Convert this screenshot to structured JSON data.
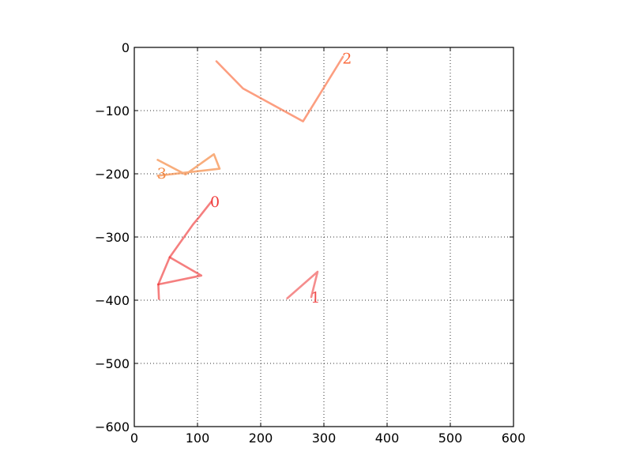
{
  "chart_data": {
    "type": "line",
    "title": "",
    "xlabel": "",
    "ylabel": "",
    "xlim": [
      0,
      600
    ],
    "ylim": [
      -600,
      0
    ],
    "xticks": [
      0,
      100,
      200,
      300,
      400,
      500,
      600
    ],
    "yticks": [
      0,
      -100,
      -200,
      -300,
      -400,
      -500,
      -600
    ],
    "xtick_labels": [
      "0",
      "100",
      "200",
      "300",
      "400",
      "500",
      "600"
    ],
    "ytick_labels": [
      "0",
      "−100",
      "−200",
      "−300",
      "−400",
      "−500",
      "−600"
    ],
    "grid": true,
    "legend": "none",
    "series": [
      {
        "label": "0",
        "label_pos": [
          120,
          -245
        ],
        "color": "#f03a3a",
        "segments": [
          {
            "points": [
              [
                122,
                -244
              ],
              [
                103,
                -268
              ],
              [
                93,
                -280
              ],
              [
                56,
                -332
              ],
              [
                38,
                -375
              ]
            ],
            "opacity": 0.65
          },
          {
            "points": [
              [
                56,
                -332
              ],
              [
                106,
                -361
              ],
              [
                38,
                -375
              ]
            ],
            "opacity": 0.65
          },
          {
            "points": [
              [
                38,
                -375
              ],
              [
                39,
                -398
              ]
            ],
            "opacity": 0.65
          }
        ]
      },
      {
        "label": "1",
        "label_pos": [
          279,
          -396
        ],
        "color": "#f05050",
        "segments": [
          {
            "points": [
              [
                242,
                -397
              ],
              [
                290,
                -355
              ],
              [
                280,
                -395
              ]
            ],
            "opacity": 0.65
          }
        ]
      },
      {
        "label": "2",
        "label_pos": [
          329,
          -18
        ],
        "color": "#fa6a3c",
        "segments": [
          {
            "points": [
              [
                130,
                -22
              ],
              [
                172,
                -65
              ],
              [
                267,
                -117
              ],
              [
                330,
                -15
              ]
            ],
            "opacity": 0.65
          }
        ]
      },
      {
        "label": "3",
        "label_pos": [
          36,
          -200
        ],
        "color": "#f58a45",
        "segments": [
          {
            "points": [
              [
                37,
                -178
              ],
              [
                81,
                -201
              ],
              [
                126,
                -169
              ],
              [
                135,
                -192
              ],
              [
                37,
                -203
              ]
            ],
            "opacity": 0.7
          }
        ]
      }
    ]
  }
}
